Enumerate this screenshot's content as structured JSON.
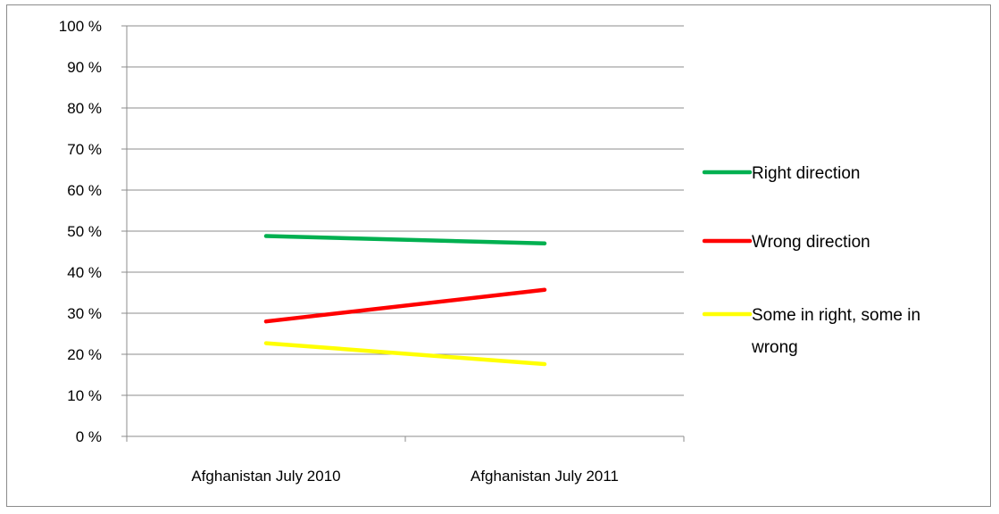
{
  "chart_data": {
    "type": "line",
    "title": "",
    "xlabel": "",
    "ylabel": "",
    "categories": [
      "Afghanistan July 2010",
      "Afghanistan July 2011"
    ],
    "ylim": [
      0,
      100
    ],
    "yticks": [
      0,
      10,
      20,
      30,
      40,
      50,
      60,
      70,
      80,
      90,
      100
    ],
    "ytick_labels": [
      "0 %",
      "10 %",
      "20 %",
      "30 %",
      "40 %",
      "50 %",
      "60 %",
      "70 %",
      "80 %",
      "90 %",
      "100 %"
    ],
    "grid": true,
    "legend_position": "right",
    "series": [
      {
        "name": "Right direction",
        "values": [
          48.8,
          47.0
        ],
        "color": "#00b050"
      },
      {
        "name": "Wrong direction",
        "values": [
          28.0,
          35.7
        ],
        "color": "#ff0000"
      },
      {
        "name": "Some in right, some in wrong",
        "legend_lines": [
          "Some in right, some in",
          "wrong"
        ],
        "values": [
          22.7,
          17.6
        ],
        "color": "#ffff00"
      }
    ]
  }
}
